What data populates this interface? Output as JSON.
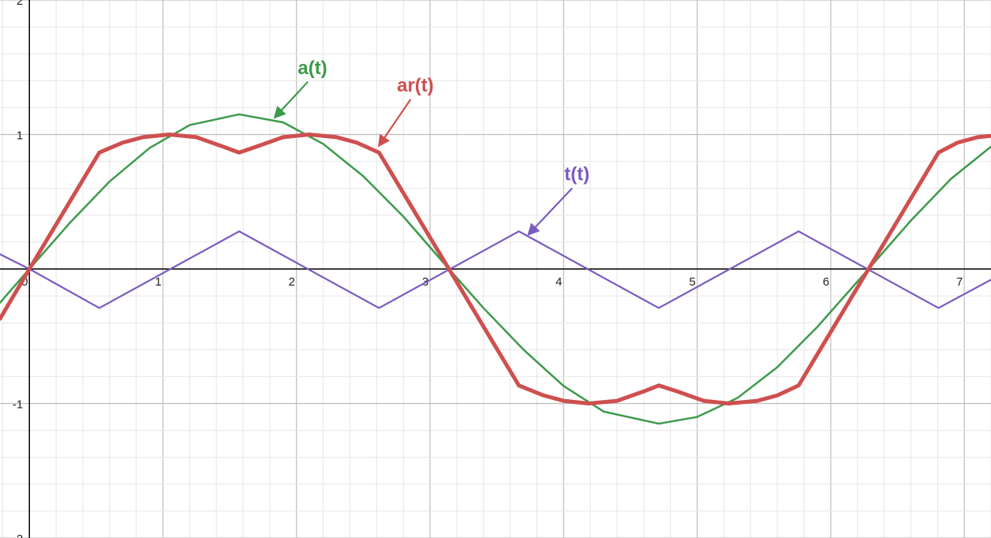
{
  "chart_data": {
    "type": "line",
    "title": "",
    "xlabel": "",
    "ylabel": "",
    "xlim": [
      -0.22,
      7.2
    ],
    "ylim": [
      -2,
      2
    ],
    "grid": true,
    "minor_grid_step": 0.2,
    "x_ticks": [
      {
        "value": 0,
        "label": "0"
      },
      {
        "value": 1,
        "label": "1"
      },
      {
        "value": 2,
        "label": "2"
      },
      {
        "value": 3,
        "label": "3"
      },
      {
        "value": 4,
        "label": "4"
      },
      {
        "value": 5,
        "label": "5"
      },
      {
        "value": 6,
        "label": "6"
      },
      {
        "value": 7,
        "label": "7"
      }
    ],
    "y_ticks": [
      {
        "value": 2,
        "label": "2"
      },
      {
        "value": 1,
        "label": "1"
      },
      {
        "value": -1,
        "label": "-1"
      },
      {
        "value": -2,
        "label": "-2"
      }
    ],
    "series": [
      {
        "name": "a(t)",
        "color": "#3d9a4a",
        "x": [
          -0.22,
          0,
          0.3,
          0.6,
          0.9,
          1.2,
          1.5708,
          1.9,
          2.2,
          2.5,
          2.8,
          3.1416,
          3.4,
          3.7,
          4.0,
          4.3,
          4.7124,
          5.0,
          5.3,
          5.6,
          5.9,
          6.2832,
          6.6,
          6.9,
          7.2
        ],
        "y": [
          -0.25,
          0,
          0.34,
          0.65,
          0.9,
          1.07,
          1.15,
          1.09,
          0.93,
          0.69,
          0.39,
          0,
          -0.29,
          -0.6,
          -0.87,
          -1.06,
          -1.15,
          -1.1,
          -0.96,
          -0.73,
          -0.43,
          0,
          0.36,
          0.67,
          0.91
        ]
      },
      {
        "name": "ar(t)",
        "color": "#cf4f4f",
        "x": [
          -0.22,
          0,
          0.5236,
          0.7,
          0.85,
          1.0472,
          1.25,
          1.45,
          1.5708,
          1.7,
          1.9,
          2.0944,
          2.3,
          2.45,
          2.618,
          3.1416,
          3.665,
          3.85,
          4.0,
          4.1888,
          4.4,
          4.6,
          4.7124,
          4.85,
          5.05,
          5.236,
          5.45,
          5.6,
          5.7596,
          6.2832,
          6.8068,
          6.95,
          7.1,
          7.2
        ],
        "y": [
          -0.37,
          0,
          0.866,
          0.94,
          0.98,
          1.0,
          0.98,
          0.91,
          0.866,
          0.91,
          0.98,
          1.0,
          0.98,
          0.94,
          0.866,
          0,
          -0.866,
          -0.94,
          -0.98,
          -1.0,
          -0.98,
          -0.91,
          -0.866,
          -0.91,
          -0.98,
          -1.0,
          -0.98,
          -0.94,
          -0.866,
          0,
          0.866,
          0.94,
          0.98,
          0.99
        ]
      },
      {
        "name": "t(t)",
        "color": "#7b5bbf",
        "x": [
          -0.22,
          0,
          0.5236,
          1.5708,
          2.618,
          3.665,
          4.7124,
          5.7596,
          6.8068,
          7.2
        ],
        "y": [
          0.11,
          0,
          -0.29,
          0.28,
          -0.29,
          0.28,
          -0.29,
          0.28,
          -0.29,
          -0.08
        ]
      }
    ],
    "annotations": [
      {
        "text": "a(t)",
        "series": "a(t)",
        "label_at": [
          2.12,
          1.45
        ],
        "arrow_to": [
          1.84,
          1.13
        ]
      },
      {
        "text": "ar(t)",
        "series": "ar(t)",
        "label_at": [
          2.89,
          1.32
        ],
        "arrow_to": [
          2.62,
          0.92
        ]
      },
      {
        "text": "t(t)",
        "series": "t(t)",
        "label_at": [
          4.1,
          0.66
        ],
        "arrow_to": [
          3.74,
          0.26
        ]
      }
    ]
  }
}
